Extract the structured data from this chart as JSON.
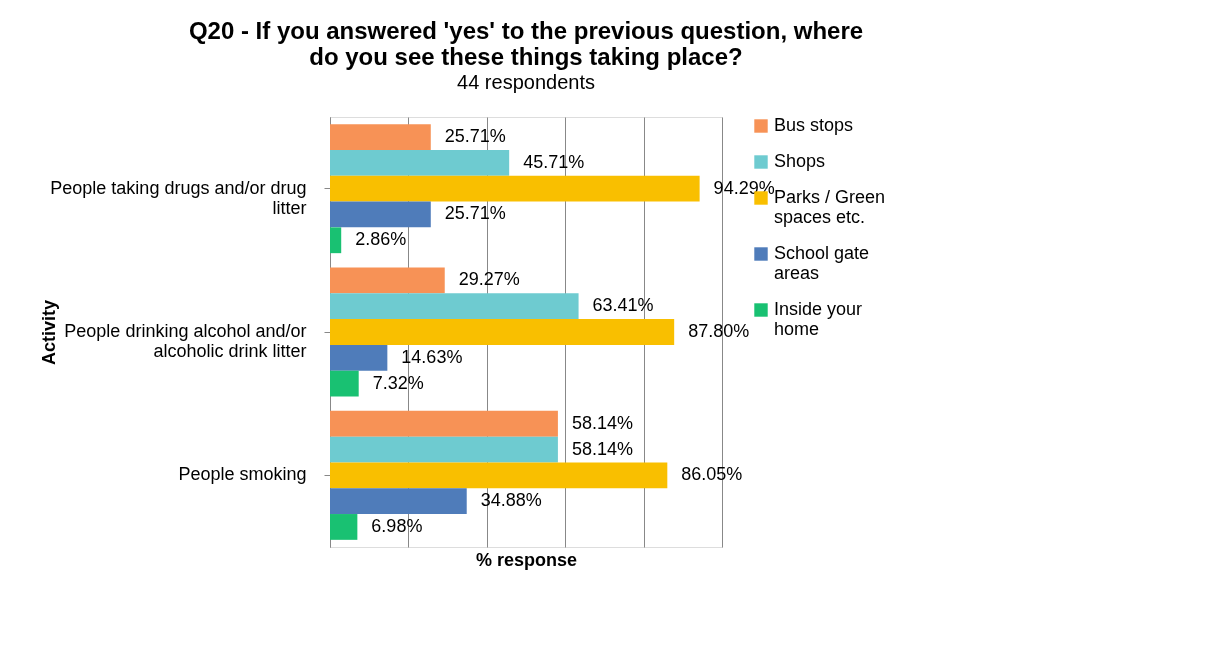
{
  "chart_data": {
    "type": "bar",
    "orientation": "horizontal",
    "title": "Q20 - If you answered 'yes' to the previous question, where do you see these things taking place?",
    "subtitle": "44 respondents",
    "xlabel": "% response",
    "ylabel": "Activity",
    "categories": [
      "People taking drugs and/or drug litter",
      "People drinking alcohol and/or alcoholic drink litter",
      "People smoking"
    ],
    "series": [
      {
        "name": "Bus stops",
        "color": "#f79256",
        "values": [
          25.71,
          29.27,
          58.14
        ],
        "value_labels": [
          "25.71%",
          "29.27%",
          "58.14%"
        ]
      },
      {
        "name": "Shops",
        "color": "#6ecbd0",
        "values": [
          45.71,
          63.41,
          58.14
        ],
        "value_labels": [
          "45.71%",
          "63.41%",
          "58.14%"
        ]
      },
      {
        "name": "Parks / Green spaces etc.",
        "color": "#f9bf00",
        "values": [
          94.29,
          87.8,
          86.05
        ],
        "value_labels": [
          "94.29%",
          "87.80%",
          "86.05%"
        ]
      },
      {
        "name": "School gate areas",
        "color": "#4f7cba",
        "values": [
          25.71,
          14.63,
          34.88
        ],
        "value_labels": [
          "25.71%",
          "14.63%",
          "34.88%"
        ]
      },
      {
        "name": "Inside your home",
        "color": "#19c172",
        "values": [
          2.86,
          7.32,
          6.98
        ],
        "value_labels": [
          "2.86%",
          "7.32%",
          "6.98%"
        ]
      }
    ],
    "xlim": [
      0,
      100
    ],
    "xticks": [
      {
        "value": 0,
        "label": null
      },
      {
        "value": 20,
        "label": null
      },
      {
        "value": 40,
        "label": null
      },
      {
        "value": 60,
        "label": null
      },
      {
        "value": 80,
        "label": null
      },
      {
        "value": 100,
        "label": null
      }
    ],
    "tick_labels": "y",
    "grid": "x",
    "legend": "right"
  }
}
